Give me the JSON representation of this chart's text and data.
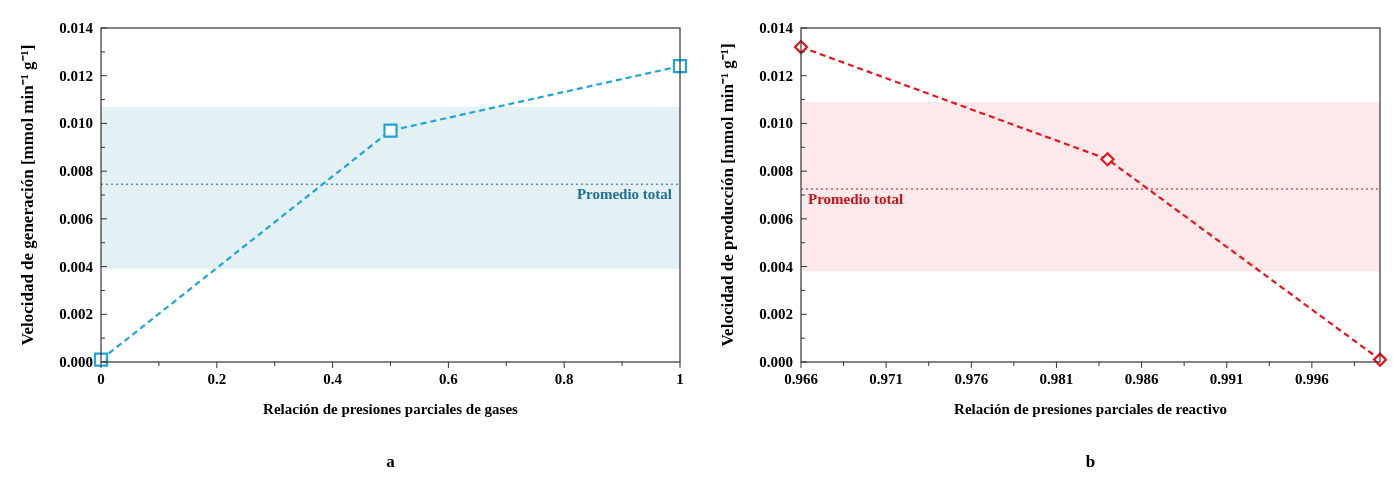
{
  "chart_data": [
    {
      "type": "line",
      "xlabel": "Relación de presiones parciales de gases",
      "ylabel": "Velocidad de generación [mmol min⁻¹ g⁻¹]",
      "annotations": [
        "a"
      ],
      "x": [
        0,
        0.5,
        1
      ],
      "series": [
        {
          "color": "#1fa3d8",
          "values": [
            0.0001,
            0.0097,
            0.0124
          ]
        }
      ],
      "marker": "square",
      "line_style": "dashed",
      "xlim": [
        0,
        1
      ],
      "ylim": [
        0,
        0.014
      ],
      "xticks": [
        0,
        {
          "value": 0.1,
          "label": null
        },
        0.2,
        {
          "value": 0.3,
          "label": null
        },
        0.4,
        {
          "value": 0.5,
          "label": null
        },
        0.6,
        {
          "value": 0.7,
          "label": null
        },
        0.8,
        {
          "value": 0.9,
          "label": null
        },
        1
      ],
      "yticks": [
        {
          "value": 0,
          "label": "0.000"
        },
        {
          "value": 0.001,
          "label": null
        },
        {
          "value": 0.002,
          "label": "0.002"
        },
        {
          "value": 0.003,
          "label": null
        },
        {
          "value": 0.004,
          "label": "0.004"
        },
        {
          "value": 0.005,
          "label": null
        },
        {
          "value": 0.006,
          "label": "0.006"
        },
        {
          "value": 0.007,
          "label": null
        },
        {
          "value": 0.008,
          "label": "0.008"
        },
        {
          "value": 0.009,
          "label": null
        },
        {
          "value": 0.01,
          "label": "0.010"
        },
        {
          "value": 0.011,
          "label": null
        },
        {
          "value": 0.012,
          "label": "0.012"
        },
        {
          "value": 0.013,
          "label": null
        },
        {
          "value": 0.014,
          "label": "0.014"
        }
      ],
      "ref_lines": [
        {
          "axis": "y",
          "value": 0.00745,
          "label": "Promedio total",
          "color": "#1f6f96",
          "line_style": "dotted"
        }
      ],
      "bands": [
        {
          "axis": "y",
          "from": 0.0039,
          "to": 0.0107,
          "color": "#e3f1f5"
        }
      ],
      "grid": false
    },
    {
      "type": "line",
      "xlabel": "Relación de presiones parciales de reactivo",
      "ylabel": "Velocidad de producción [mmol min⁻¹ g⁻¹]",
      "annotations": [
        "b"
      ],
      "x": [
        0.966,
        0.984,
        1.0
      ],
      "series": [
        {
          "color": "#e8141b",
          "values": [
            0.0132,
            0.0085,
            0.0001
          ]
        }
      ],
      "marker": "diamond",
      "line_style": "dashed",
      "xlim": [
        0.966,
        1.0
      ],
      "ylim": [
        0,
        0.014
      ],
      "xticks": [
        0.966,
        {
          "value": 0.9685,
          "label": null
        },
        0.971,
        {
          "value": 0.9735,
          "label": null
        },
        0.976,
        {
          "value": 0.9785,
          "label": null
        },
        0.981,
        {
          "value": 0.9835,
          "label": null
        },
        0.986,
        {
          "value": 0.9885,
          "label": null
        },
        0.991,
        {
          "value": 0.9935,
          "label": null
        },
        0.996,
        {
          "value": 0.9985,
          "label": null
        }
      ],
      "yticks": [
        {
          "value": 0,
          "label": "0.000"
        },
        {
          "value": 0.001,
          "label": null
        },
        {
          "value": 0.002,
          "label": "0.002"
        },
        {
          "value": 0.003,
          "label": null
        },
        {
          "value": 0.004,
          "label": "0.004"
        },
        {
          "value": 0.005,
          "label": null
        },
        {
          "value": 0.006,
          "label": "0.006"
        },
        {
          "value": 0.007,
          "label": null
        },
        {
          "value": 0.008,
          "label": "0.008"
        },
        {
          "value": 0.009,
          "label": null
        },
        {
          "value": 0.01,
          "label": "0.010"
        },
        {
          "value": 0.011,
          "label": null
        },
        {
          "value": 0.012,
          "label": "0.012"
        },
        {
          "value": 0.013,
          "label": null
        },
        {
          "value": 0.014,
          "label": "0.014"
        }
      ],
      "ref_lines": [
        {
          "axis": "y",
          "value": 0.00725,
          "label": "Promedio total",
          "color": "#c8101a",
          "line_style": "dotted"
        }
      ],
      "bands": [
        {
          "axis": "y",
          "from": 0.0038,
          "to": 0.0109,
          "color": "#fde9e9"
        }
      ],
      "grid": false
    }
  ]
}
